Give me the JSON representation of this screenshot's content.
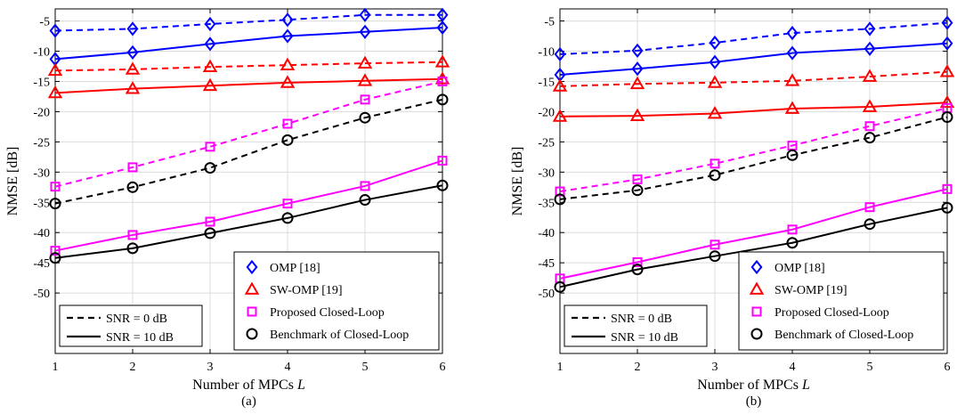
{
  "colors": {
    "omp": "#0000ff",
    "swomp": "#ff0000",
    "proposed": "#ff00ff",
    "benchmark": "#000000"
  },
  "legends": {
    "methods": [
      "OMP [18]",
      "SW-OMP [19]",
      "Proposed Closed-Loop",
      "Benchmark of Closed-Loop"
    ],
    "snr": [
      "SNR = 0 dB",
      "SNR = 10 dB"
    ]
  },
  "chart_data": [
    {
      "panel": "(a)",
      "type": "line",
      "xlabel": "Number of MPCs L",
      "ylabel": "NMSE [dB]",
      "x": [
        1,
        2,
        3,
        4,
        5,
        6
      ],
      "xlim": [
        1,
        6
      ],
      "ylim": [
        -60,
        -3
      ],
      "yticks": [
        -5,
        -10,
        -15,
        -20,
        -25,
        -30,
        -35,
        -40,
        -45,
        -50
      ],
      "grid": true,
      "legend_placement": "bottom-right (methods), bottom-left (SNR line styles)",
      "series": [
        {
          "name": "OMP [18]",
          "snr": "SNR = 0 dB",
          "marker": "diamond",
          "values": [
            -6.6,
            -6.3,
            -5.5,
            -4.8,
            -4.0,
            -4.0
          ]
        },
        {
          "name": "OMP [18]",
          "snr": "SNR = 10 dB",
          "marker": "diamond",
          "values": [
            -11.3,
            -10.2,
            -8.8,
            -7.5,
            -6.8,
            -6.1
          ]
        },
        {
          "name": "SW-OMP [19]",
          "snr": "SNR = 0 dB",
          "marker": "triangle",
          "values": [
            -13.2,
            -13.0,
            -12.6,
            -12.3,
            -12.0,
            -11.8
          ]
        },
        {
          "name": "SW-OMP [19]",
          "snr": "SNR = 10 dB",
          "marker": "triangle",
          "values": [
            -16.9,
            -16.2,
            -15.7,
            -15.2,
            -14.9,
            -14.6
          ]
        },
        {
          "name": "Proposed Closed-Loop",
          "snr": "SNR = 0 dB",
          "marker": "square",
          "values": [
            -32.4,
            -29.2,
            -25.8,
            -22.0,
            -18.0,
            -15.0
          ]
        },
        {
          "name": "Proposed Closed-Loop",
          "snr": "SNR = 10 dB",
          "marker": "square",
          "values": [
            -43.0,
            -40.4,
            -38.2,
            -35.2,
            -32.3,
            -28.1
          ]
        },
        {
          "name": "Benchmark of Closed-Loop",
          "snr": "SNR = 0 dB",
          "marker": "circle",
          "values": [
            -35.2,
            -32.5,
            -29.3,
            -24.7,
            -21.0,
            -18.0
          ]
        },
        {
          "name": "Benchmark of Closed-Loop",
          "snr": "SNR = 10 dB",
          "marker": "circle",
          "values": [
            -44.2,
            -42.6,
            -40.1,
            -37.6,
            -34.6,
            -32.2
          ]
        }
      ]
    },
    {
      "panel": "(b)",
      "type": "line",
      "xlabel": "Number of MPCs L",
      "ylabel": "NMSE [dB]",
      "x": [
        1,
        2,
        3,
        4,
        5,
        6
      ],
      "xlim": [
        1,
        6
      ],
      "ylim": [
        -60,
        -3
      ],
      "yticks": [
        -5,
        -10,
        -15,
        -20,
        -25,
        -30,
        -35,
        -40,
        -45,
        -50
      ],
      "grid": true,
      "legend_placement": "bottom-right (methods), bottom-left (SNR line styles)",
      "series": [
        {
          "name": "OMP [18]",
          "snr": "SNR = 0 dB",
          "marker": "diamond",
          "values": [
            -10.5,
            -9.9,
            -8.6,
            -7.0,
            -6.3,
            -5.3
          ]
        },
        {
          "name": "OMP [18]",
          "snr": "SNR = 10 dB",
          "marker": "diamond",
          "values": [
            -13.9,
            -12.9,
            -11.8,
            -10.3,
            -9.6,
            -8.7
          ]
        },
        {
          "name": "SW-OMP [19]",
          "snr": "SNR = 0 dB",
          "marker": "triangle",
          "values": [
            -15.8,
            -15.4,
            -15.2,
            -14.9,
            -14.2,
            -13.4
          ]
        },
        {
          "name": "SW-OMP [19]",
          "snr": "SNR = 10 dB",
          "marker": "triangle",
          "values": [
            -20.8,
            -20.7,
            -20.3,
            -19.5,
            -19.2,
            -18.5
          ]
        },
        {
          "name": "Proposed Closed-Loop",
          "snr": "SNR = 0 dB",
          "marker": "square",
          "values": [
            -33.2,
            -31.2,
            -28.6,
            -25.6,
            -22.4,
            -19.4
          ]
        },
        {
          "name": "Proposed Closed-Loop",
          "snr": "SNR = 10 dB",
          "marker": "square",
          "values": [
            -47.6,
            -44.9,
            -42.0,
            -39.5,
            -35.8,
            -32.8
          ]
        },
        {
          "name": "Benchmark of Closed-Loop",
          "snr": "SNR = 0 dB",
          "marker": "circle",
          "values": [
            -34.5,
            -33.0,
            -30.5,
            -27.2,
            -24.3,
            -20.9
          ]
        },
        {
          "name": "Benchmark of Closed-Loop",
          "snr": "SNR = 10 dB",
          "marker": "circle",
          "values": [
            -49.0,
            -46.1,
            -43.9,
            -41.7,
            -38.6,
            -35.9
          ]
        }
      ]
    }
  ]
}
